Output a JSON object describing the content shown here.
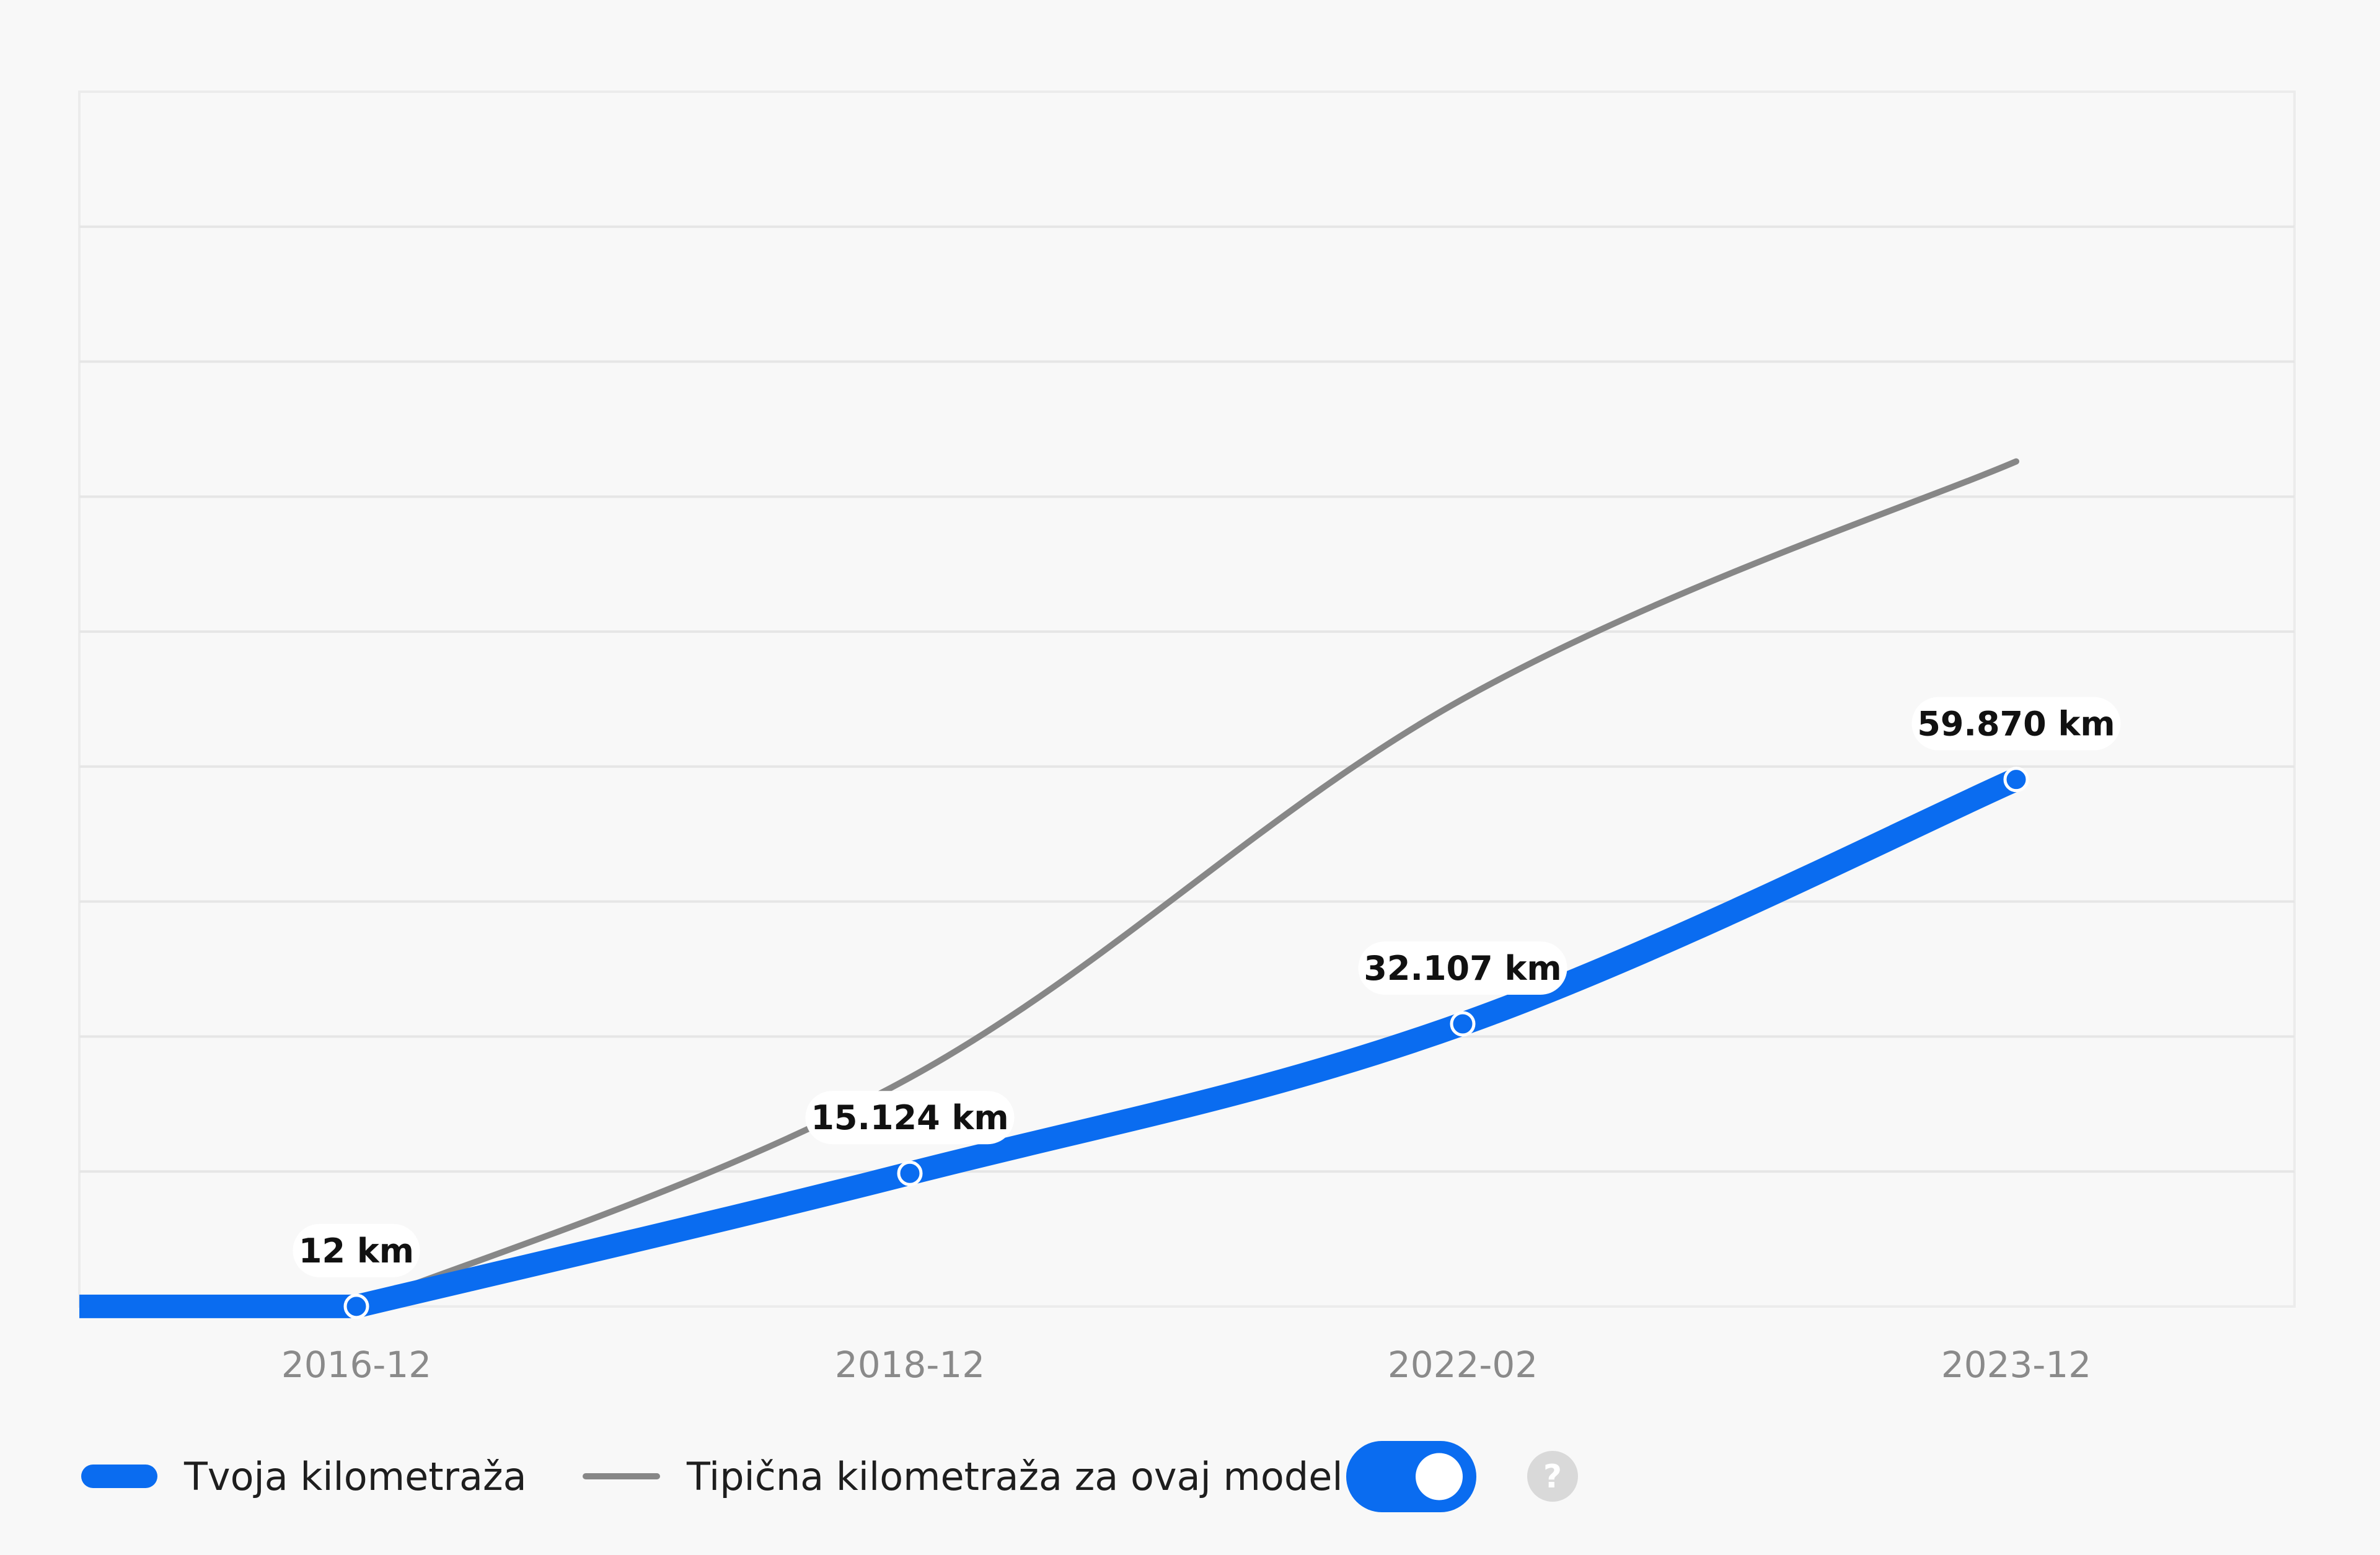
{
  "chart_data": {
    "type": "line",
    "x": [
      "2016-12",
      "2018-12",
      "2022-02",
      "2023-12"
    ],
    "series": [
      {
        "name": "Tvoja kilometraža",
        "color": "#0a6cf0",
        "values": [
          12,
          15124,
          32107,
          59870
        ],
        "labels": [
          "12 km",
          "15.124 km",
          "32.107 km",
          "59.870 km"
        ]
      },
      {
        "name": "Tipična kilometraža za ovaj model",
        "color": "#878787",
        "values": [
          12,
          26000,
          69000,
          96000
        ]
      }
    ],
    "ylim": [
      0,
      138000
    ],
    "grid": true,
    "legend_position": "bottom-left"
  },
  "legend": {
    "toggle_on": true,
    "toggle_color": "#0a6cf0",
    "help_icon": "question-mark-icon",
    "help_text": "?"
  }
}
